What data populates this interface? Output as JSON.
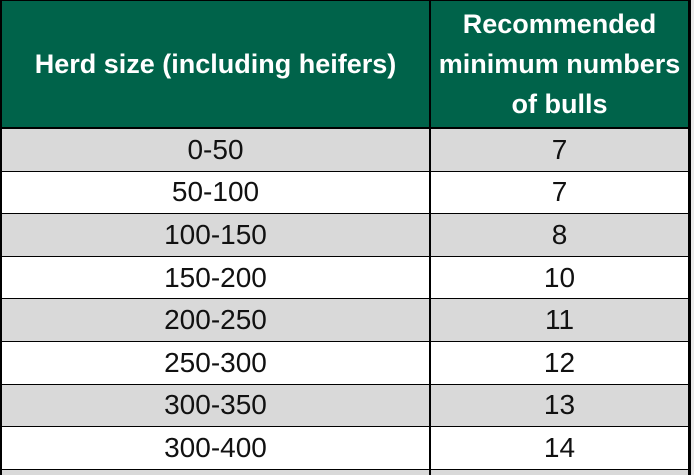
{
  "table": {
    "header": {
      "herd_size": "Herd size (including heifers)",
      "bulls_lines": [
        "Recommended",
        "minimum numbers",
        "of bulls"
      ]
    },
    "rows": [
      {
        "herd_size": "0-50",
        "bulls": "7"
      },
      {
        "herd_size": "50-100",
        "bulls": "7"
      },
      {
        "herd_size": "100-150",
        "bulls": "8"
      },
      {
        "herd_size": "150-200",
        "bulls": "10"
      },
      {
        "herd_size": "200-250",
        "bulls": "11"
      },
      {
        "herd_size": "250-300",
        "bulls": "12"
      },
      {
        "herd_size": "300-350",
        "bulls": "13"
      },
      {
        "herd_size": "300-400",
        "bulls": "14"
      }
    ]
  },
  "colors": {
    "header_bg": "#00634A",
    "header_text": "#FFFFFF",
    "alt_row_bg": "#D9D9D9",
    "row_bg": "#FFFFFF",
    "border": "#000000",
    "body_text": "#111111"
  },
  "chart_data": {
    "type": "table",
    "columns": [
      "Herd size (including heifers)",
      "Recommended minimum numbers of bulls"
    ],
    "rows": [
      [
        "0-50",
        7
      ],
      [
        "50-100",
        7
      ],
      [
        "100-150",
        8
      ],
      [
        "150-200",
        10
      ],
      [
        "200-250",
        11
      ],
      [
        "250-300",
        12
      ],
      [
        "300-350",
        13
      ],
      [
        "300-400",
        14
      ]
    ]
  }
}
